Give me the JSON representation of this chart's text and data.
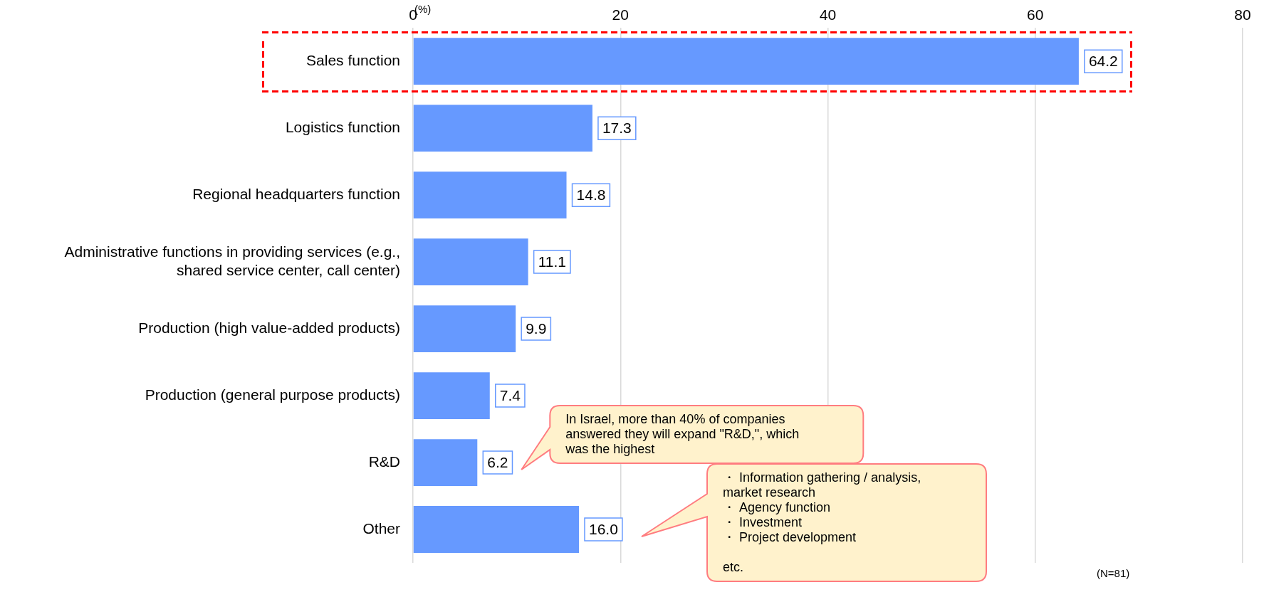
{
  "chart_data": {
    "type": "bar",
    "orientation": "horizontal",
    "xlabel": "(%)",
    "categories": [
      "Sales function",
      "Logistics function",
      "Regional headquarters function",
      "Administrative functions in providing services (e.g.,\nshared service center, call center)",
      "Production (high value-added products)",
      "Production (general purpose products)",
      "R&D",
      "Other"
    ],
    "values": [
      64.2,
      17.3,
      14.8,
      11.1,
      9.9,
      7.4,
      6.2,
      16.0
    ],
    "value_labels": [
      "64.2",
      "17.3",
      "14.8",
      "11.1",
      "9.9",
      "7.4",
      "6.2",
      "16.0"
    ],
    "color": "#6699ff",
    "xlim": [
      0,
      80
    ],
    "xticks": [
      0,
      20,
      40,
      60,
      80
    ],
    "grid": "x",
    "legend": false,
    "annotations": [
      "In Israel, more than 40% of companies\nanswered they will expand \"R&D,\", which\nwas the highest",
      "・ Information gathering / analysis,\nmarket research\n・ Agency function\n・ Investment\n・ Project development\n\netc.",
      "(N=81)"
    ]
  }
}
